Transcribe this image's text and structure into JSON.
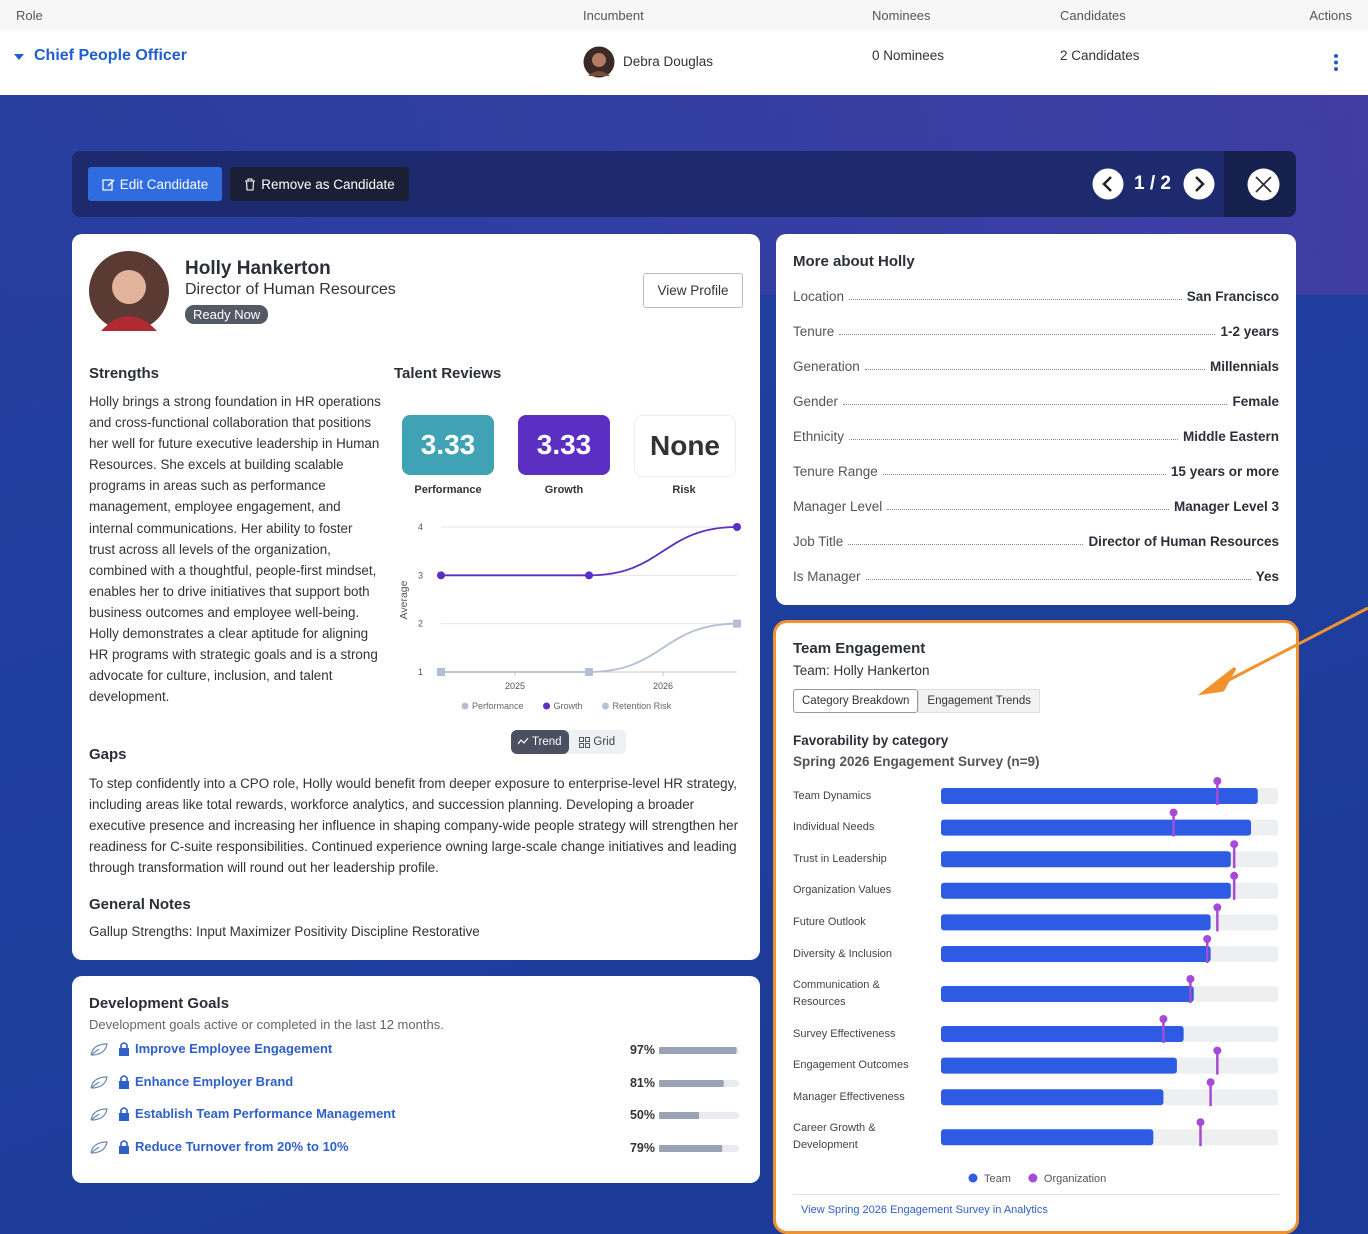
{
  "table": {
    "columns": [
      "Role",
      "Incumbent",
      "Nominees",
      "Candidates",
      "Actions"
    ],
    "row": {
      "role": "Chief People Officer",
      "incumbent": "Debra Douglas",
      "nominees": "0 Nominees",
      "candidates": "2 Candidates"
    }
  },
  "toolbar": {
    "edit": "Edit Candidate",
    "remove": "Remove as Candidate",
    "pager": "1 / 2"
  },
  "profile": {
    "name": "Holly Hankerton",
    "title": "Director of Human Resources",
    "status": "Ready Now",
    "view_profile": "View Profile"
  },
  "strengths": {
    "heading": "Strengths",
    "text": "Holly brings a strong foundation in HR operations and cross-functional collaboration that positions her well for future executive leadership in Human Resources. She excels at building scalable programs in areas such as performance management, employee engagement, and internal communications. Her ability to foster trust across all levels of the organization, combined with a thoughtful, people-first mindset, enables her to drive initiatives that support both business outcomes and employee well-being. Holly demonstrates a clear aptitude for aligning HR programs with strategic goals and is a strong advocate for culture, inclusion, and talent development."
  },
  "talent_reviews": {
    "heading": "Talent Reviews",
    "scores": [
      {
        "value": "3.33",
        "label": "Performance"
      },
      {
        "value": "3.33",
        "label": "Growth"
      },
      {
        "value": "None",
        "label": "Risk"
      }
    ],
    "toggle": [
      "Trend",
      "Grid"
    ]
  },
  "gaps": {
    "heading": "Gaps",
    "text": "To step confidently into a CPO role, Holly would benefit from deeper exposure to enterprise-level HR strategy, including areas like total rewards, workforce analytics, and succession planning. Developing a broader executive presence and increasing her influence in shaping company-wide people strategy will strengthen her readiness for C-suite responsibilities. Continued experience owning large-scale change initiatives and leading through transformation will round out her leadership profile."
  },
  "notes": {
    "heading": "General Notes",
    "text": "Gallup Strengths: Input Maximizer Positivity Discipline Restorative"
  },
  "development_goals": {
    "heading": "Development Goals",
    "subtitle": "Development goals active or completed in the last 12 months.",
    "goals": [
      {
        "name": "Improve Employee Engagement",
        "progress": 97,
        "progress_label": "97%"
      },
      {
        "name": "Enhance Employer Brand",
        "progress": 81,
        "progress_label": "81%"
      },
      {
        "name": "Establish Team Performance Management",
        "progress": 50,
        "progress_label": "50%"
      },
      {
        "name": "Reduce Turnover from 20% to 10%",
        "progress": 79,
        "progress_label": "79%"
      }
    ]
  },
  "more_about": {
    "heading": "More about Holly",
    "items": [
      {
        "label": "Location",
        "value": "San Francisco"
      },
      {
        "label": "Tenure",
        "value": "1-2 years"
      },
      {
        "label": "Generation",
        "value": "Millennials"
      },
      {
        "label": "Gender",
        "value": "Female"
      },
      {
        "label": "Ethnicity",
        "value": "Middle Eastern"
      },
      {
        "label": "Tenure Range",
        "value": "15 years or more"
      },
      {
        "label": "Manager Level",
        "value": "Manager Level 3"
      },
      {
        "label": "Job Title",
        "value": "Director of Human Resources"
      },
      {
        "label": "Is Manager",
        "value": "Yes"
      }
    ]
  },
  "team_engagement": {
    "title": "Team Engagement",
    "team": "Team: Holly Hankerton",
    "tabs": [
      "Category Breakdown",
      "Engagement Trends"
    ],
    "heading": "Favorability by category",
    "subtitle": "Spring 2026 Engagement Survey (n=9)",
    "link": "View Spring 2026 Engagement Survey in Analytics"
  },
  "chart_data": [
    {
      "type": "line",
      "y_label": "Average",
      "x": [
        2024.5,
        2025.5,
        2026.5
      ],
      "xlim": [
        2024.5,
        2026.5
      ],
      "xticks": [
        2025,
        2026
      ],
      "ylim": [
        1,
        4
      ],
      "yticks": [
        1,
        2,
        3,
        4
      ],
      "grid": true,
      "series": [
        {
          "name": "Performance",
          "color": "#b4bfd3",
          "marker": "square",
          "values": [
            1,
            1,
            2
          ]
        },
        {
          "name": "Growth",
          "color": "#5a2fc2",
          "marker": "circle",
          "values": [
            3,
            3,
            4
          ]
        },
        {
          "name": "Retention Risk",
          "color": "#b9c3cf",
          "marker": "circle",
          "values": [
            null,
            null,
            null
          ]
        }
      ]
    },
    {
      "type": "bar",
      "orientation": "horizontal",
      "xlim": [
        0,
        100
      ],
      "categories": [
        "Team Dynamics",
        "Individual Needs",
        "Trust in Leadership",
        "Organization Values",
        "Future Outlook",
        "Diversity & Inclusion",
        "Communication & Resources",
        "Survey Effectiveness",
        "Engagement Outcomes",
        "Manager Effectiveness",
        "Career Growth & Development"
      ],
      "series": [
        {
          "name": "Team",
          "color": "#2d5be3",
          "marker": "bar",
          "values": [
            94,
            92,
            86,
            86,
            80,
            80,
            75,
            72,
            70,
            66,
            63
          ]
        },
        {
          "name": "Organization",
          "color": "#a64bd6",
          "marker": "pin",
          "values": [
            82,
            69,
            87,
            87,
            82,
            79,
            74,
            66,
            82,
            80,
            77
          ]
        }
      ]
    }
  ]
}
